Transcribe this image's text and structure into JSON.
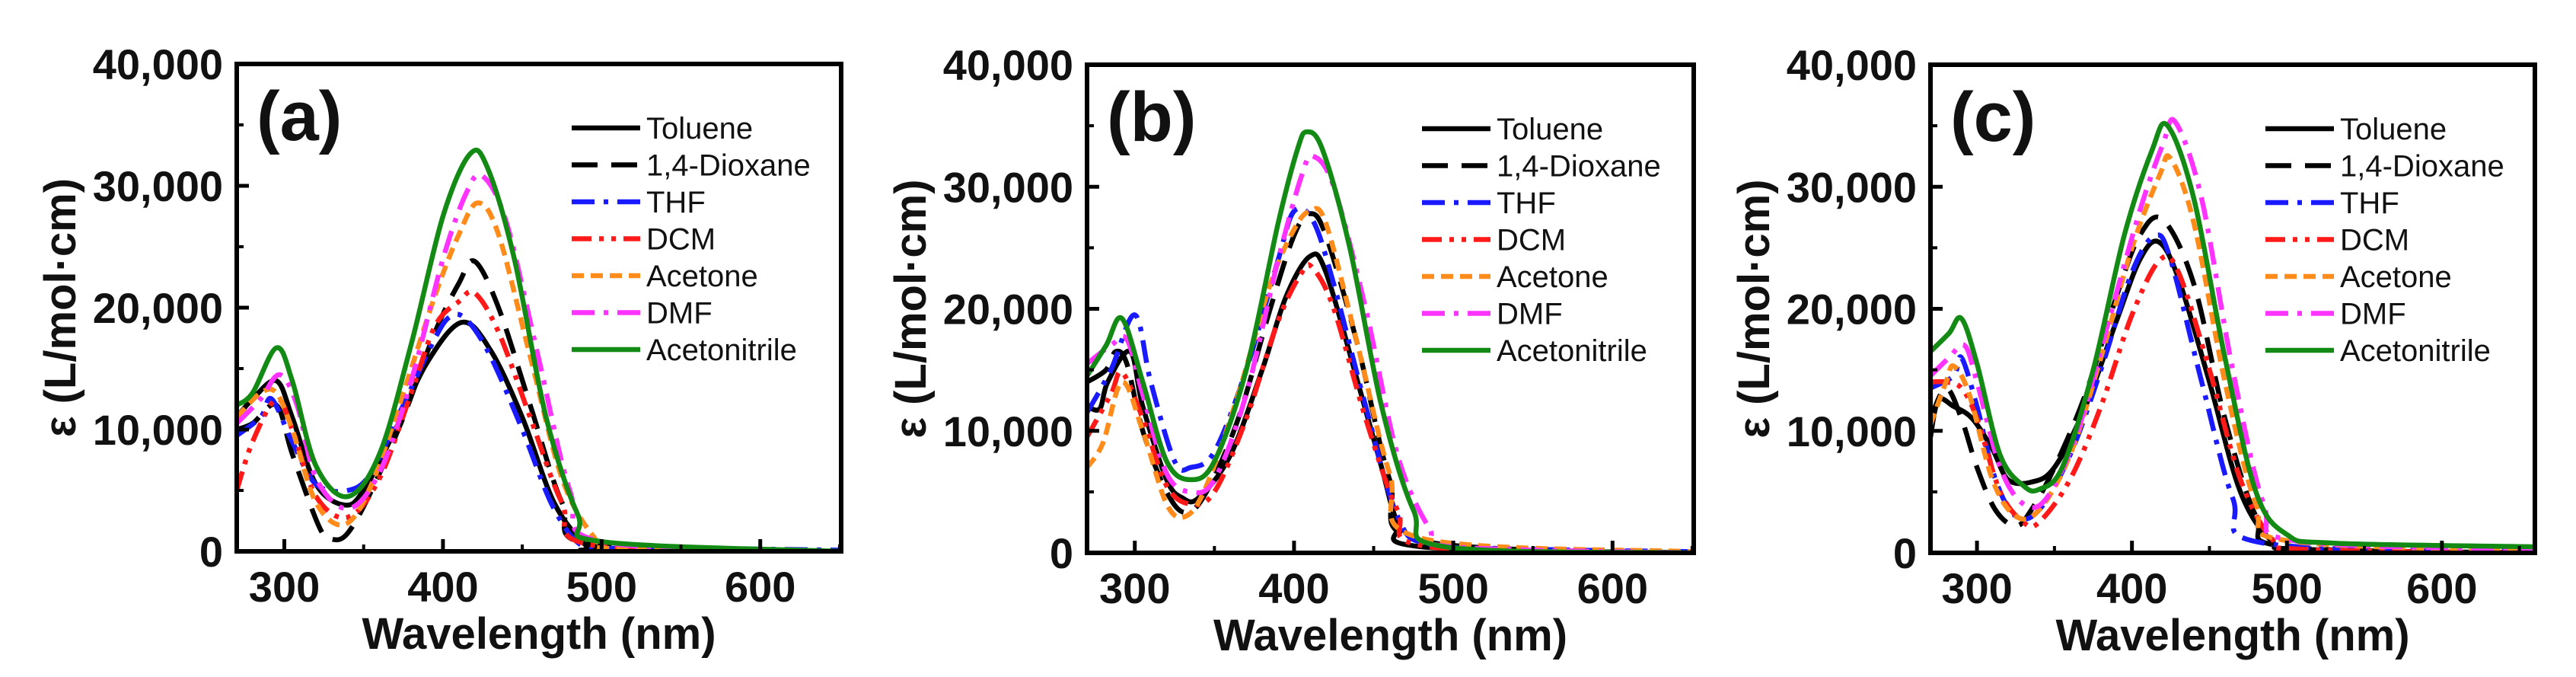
{
  "chart_data": [
    {
      "type": "line",
      "panel_label": "(a)",
      "xlabel": "Wavelength (nm)",
      "ylabel": "ε (L/mol·cm)",
      "xlim": [
        270,
        651
      ],
      "ylim": [
        0,
        40000
      ],
      "xticks": [
        300,
        400,
        500,
        600
      ],
      "xtick_labels": [
        "300",
        "400",
        "500",
        "600"
      ],
      "yticks": [
        0,
        10000,
        20000,
        30000,
        40000
      ],
      "ytick_labels": [
        "0",
        "10,000",
        "20,000",
        "30,000",
        "40,000"
      ],
      "legend_position": "top-right",
      "series": [
        {
          "name": "Toluene",
          "color": "#000000",
          "style": "solid",
          "x": [
            270,
            280,
            295,
            305,
            320,
            338,
            350,
            370,
            390,
            412,
            430,
            450,
            470,
            490,
            500,
            650
          ],
          "y": [
            11000,
            12500,
            14000,
            11000,
            5500,
            3800,
            5000,
            10000,
            15500,
            18800,
            16500,
            11000,
            4000,
            500,
            100,
            0
          ]
        },
        {
          "name": "1,4-Dioxane",
          "color": "#000000",
          "style": "dash",
          "x": [
            270,
            280,
            295,
            305,
            322,
            330,
            340,
            355,
            375,
            395,
            410,
            420,
            435,
            455,
            475,
            495,
            650
          ],
          "y": [
            10000,
            10500,
            12000,
            8000,
            2000,
            1000,
            1500,
            5000,
            11000,
            18000,
            22000,
            23800,
            20000,
            12000,
            4000,
            500,
            0
          ]
        },
        {
          "name": "THF",
          "color": "#1a1aff",
          "style": "dashdot",
          "x": [
            270,
            285,
            292,
            305,
            320,
            340,
            355,
            375,
            395,
            405,
            415,
            430,
            450,
            470,
            490,
            520,
            650
          ],
          "y": [
            9500,
            11000,
            12500,
            9000,
            5500,
            5000,
            6500,
            12000,
            17500,
            19300,
            19000,
            16000,
            10000,
            3500,
            300,
            300,
            100
          ]
        },
        {
          "name": "DCM",
          "color": "#ff1a1a",
          "style": "dashdotdot",
          "x": [
            270,
            280,
            295,
            305,
            320,
            340,
            360,
            380,
            395,
            410,
            420,
            435,
            455,
            475,
            495,
            650
          ],
          "y": [
            5000,
            9000,
            12500,
            10000,
            4500,
            2800,
            6000,
            13000,
            18500,
            20500,
            21200,
            18000,
            11000,
            4000,
            500,
            0
          ]
        },
        {
          "name": "Acetone",
          "color": "#ff8c1a",
          "style": "shortdash",
          "x": [
            270,
            285,
            295,
            305,
            320,
            338,
            355,
            375,
            395,
            410,
            422,
            435,
            455,
            475,
            495,
            510,
            650
          ],
          "y": [
            11000,
            13000,
            13000,
            10000,
            4000,
            2200,
            5500,
            13000,
            21000,
            26000,
            28600,
            26000,
            16000,
            6000,
            1200,
            200,
            0
          ]
        },
        {
          "name": "DMF",
          "color": "#ff33ff",
          "style": "dashdot",
          "x": [
            270,
            285,
            297,
            308,
            320,
            340,
            360,
            380,
            400,
            415,
            425,
            440,
            460,
            480,
            500,
            650
          ],
          "y": [
            10500,
            12500,
            14500,
            12000,
            6000,
            3500,
            6500,
            14000,
            24000,
            29500,
            30800,
            27000,
            16000,
            5000,
            800,
            0
          ]
        },
        {
          "name": "Acetonitrile",
          "color": "#138a13",
          "style": "solid",
          "x": [
            270,
            280,
            295,
            305,
            320,
            340,
            360,
            380,
            400,
            417,
            428,
            445,
            465,
            485,
            500,
            650
          ],
          "y": [
            12000,
            13000,
            16700,
            14000,
            7000,
            4500,
            8000,
            17000,
            27500,
            32600,
            31500,
            24000,
            11000,
            3000,
            800,
            0
          ]
        }
      ]
    },
    {
      "type": "line",
      "panel_label": "(b)",
      "xlabel": "Wavelength (nm)",
      "ylabel": "ε (L/mol·cm)",
      "xlim": [
        270,
        651
      ],
      "ylim": [
        0,
        40000
      ],
      "xticks": [
        300,
        400,
        500,
        600
      ],
      "xtick_labels": [
        "300",
        "400",
        "500",
        "600"
      ],
      "yticks": [
        0,
        10000,
        20000,
        30000,
        40000
      ],
      "ytick_labels": [
        "0",
        "10,000",
        "20,000",
        "30,000",
        "40,000"
      ],
      "legend_position": "top-right",
      "series": [
        {
          "name": "Toluene",
          "color": "#000000",
          "style": "solid",
          "x": [
            270,
            278,
            283,
            297,
            305,
            320,
            330,
            340,
            360,
            380,
            395,
            410,
            420,
            440,
            455,
            465,
            480,
            650
          ],
          "y": [
            12000,
            11800,
            14000,
            16500,
            12000,
            6000,
            4500,
            4500,
            8000,
            15000,
            21000,
            24300,
            23000,
            14000,
            7000,
            2500,
            500,
            0
          ]
        },
        {
          "name": "1,4-Dioxane",
          "color": "#000000",
          "style": "dash",
          "x": [
            270,
            282,
            288,
            295,
            305,
            320,
            332,
            345,
            365,
            385,
            400,
            410,
            420,
            440,
            460,
            480,
            650
          ],
          "y": [
            14000,
            15000,
            16500,
            15500,
            10000,
            5000,
            3300,
            5000,
            11000,
            20000,
            26000,
            27800,
            26000,
            17000,
            6000,
            1000,
            0
          ]
        },
        {
          "name": "THF",
          "color": "#1a1aff",
          "style": "dashdot",
          "x": [
            270,
            285,
            300,
            310,
            325,
            335,
            350,
            370,
            390,
            400,
            412,
            425,
            445,
            465,
            485,
            550,
            650
          ],
          "y": [
            11500,
            15000,
            19500,
            14000,
            7500,
            7000,
            8300,
            15000,
            24000,
            28000,
            27200,
            22000,
            12000,
            3000,
            700,
            300,
            100
          ]
        },
        {
          "name": "DCM",
          "color": "#ff1a1a",
          "style": "dashdotdot",
          "x": [
            270,
            285,
            292,
            305,
            320,
            335,
            350,
            370,
            390,
            405,
            412,
            425,
            445,
            465,
            485,
            650
          ],
          "y": [
            9500,
            13000,
            14800,
            11000,
            5500,
            4000,
            5000,
            11000,
            19000,
            23000,
            23300,
            20000,
            11000,
            3500,
            500,
            0
          ]
        },
        {
          "name": "Acetone",
          "color": "#ff8c1a",
          "style": "shortdash",
          "x": [
            270,
            280,
            292,
            305,
            320,
            332,
            345,
            365,
            385,
            400,
            410,
            420,
            440,
            460,
            480,
            650
          ],
          "y": [
            7000,
            9000,
            14000,
            10000,
            4000,
            3000,
            5500,
            13000,
            22000,
            26500,
            28000,
            27000,
            17000,
            6500,
            1200,
            100
          ]
        },
        {
          "name": "DMF",
          "color": "#ff33ff",
          "style": "dashdot",
          "x": [
            270,
            285,
            295,
            305,
            320,
            335,
            350,
            370,
            390,
            405,
            412,
            425,
            445,
            465,
            485,
            500,
            650
          ],
          "y": [
            15500,
            17000,
            17500,
            13000,
            6500,
            5000,
            6000,
            13000,
            24000,
            31000,
            32500,
            30000,
            20000,
            8000,
            2000,
            500,
            0
          ]
        },
        {
          "name": "Acetonitrile",
          "color": "#138a13",
          "style": "solid",
          "x": [
            270,
            282,
            292,
            305,
            320,
            335,
            350,
            370,
            390,
            402,
            408,
            418,
            435,
            455,
            475,
            495,
            650
          ],
          "y": [
            14500,
            17000,
            19200,
            14000,
            7500,
            6000,
            7500,
            15000,
            27000,
            33000,
            34500,
            33000,
            25000,
            12000,
            3500,
            500,
            0
          ]
        }
      ]
    },
    {
      "type": "line",
      "panel_label": "(c)",
      "xlabel": "Wavelength (nm)",
      "ylabel": "ε (L/mol·cm)",
      "xlim": [
        270,
        660
      ],
      "ylim": [
        0,
        40000
      ],
      "xticks": [
        300,
        400,
        500,
        600
      ],
      "xtick_labels": [
        "300",
        "400",
        "500",
        "600"
      ],
      "yticks": [
        0,
        10000,
        20000,
        30000,
        40000
      ],
      "ytick_labels": [
        "0",
        "10,000",
        "20,000",
        "30,000",
        "40,000"
      ],
      "legend_position": "top-right",
      "series": [
        {
          "name": "Toluene",
          "color": "#000000",
          "style": "solid",
          "x": [
            270,
            275,
            285,
            297,
            310,
            320,
            335,
            350,
            370,
            390,
            405,
            417,
            430,
            450,
            470,
            490,
            510,
            660
          ],
          "y": [
            9500,
            12500,
            12000,
            11000,
            8500,
            6000,
            5800,
            7000,
            12000,
            19000,
            24000,
            25500,
            22500,
            14000,
            5000,
            1000,
            300,
            0
          ]
        },
        {
          "name": "1,4-Dioxane",
          "color": "#000000",
          "style": "dash",
          "x": [
            270,
            280,
            290,
            300,
            312,
            325,
            335,
            350,
            370,
            390,
            405,
            420,
            440,
            460,
            480,
            500,
            660
          ],
          "y": [
            11000,
            13500,
            11000,
            7000,
            3500,
            2200,
            3500,
            7000,
            13000,
            21000,
            26000,
            27300,
            22000,
            11000,
            3000,
            500,
            0
          ]
        },
        {
          "name": "THF",
          "color": "#1a1aff",
          "style": "dashdot",
          "x": [
            270,
            285,
            290,
            300,
            312,
            325,
            340,
            360,
            380,
            400,
            415,
            425,
            445,
            465,
            485,
            660
          ],
          "y": [
            13500,
            14500,
            16000,
            12000,
            6000,
            3000,
            3500,
            8000,
            15000,
            23000,
            26000,
            24000,
            14000,
            4500,
            800,
            100
          ]
        },
        {
          "name": "DCM",
          "color": "#ff1a1a",
          "style": "dashdotdot",
          "x": [
            270,
            280,
            290,
            300,
            315,
            330,
            340,
            360,
            380,
            400,
            418,
            430,
            450,
            470,
            490,
            510,
            660
          ],
          "y": [
            14000,
            14000,
            13500,
            11000,
            5000,
            2500,
            2500,
            6000,
            12000,
            19500,
            24000,
            23000,
            15000,
            6000,
            1200,
            300,
            0
          ]
        },
        {
          "name": "Acetone",
          "color": "#ff8c1a",
          "style": "shortdash",
          "x": [
            270,
            280,
            285,
            295,
            310,
            325,
            340,
            360,
            380,
            400,
            418,
            425,
            440,
            460,
            480,
            500,
            660
          ],
          "y": [
            10500,
            14000,
            15300,
            13000,
            6000,
            3000,
            3500,
            8000,
            16000,
            25000,
            31000,
            32300,
            27000,
            14000,
            4000,
            1000,
            200
          ]
        },
        {
          "name": "DMF",
          "color": "#ff33ff",
          "style": "dashdot",
          "x": [
            270,
            282,
            292,
            300,
            315,
            330,
            345,
            365,
            385,
            405,
            420,
            428,
            445,
            465,
            485,
            505,
            660
          ],
          "y": [
            14500,
            16000,
            17000,
            14000,
            7000,
            4000,
            4500,
            10000,
            19000,
            28000,
            33500,
            35300,
            29000,
            15000,
            4000,
            1000,
            300
          ]
        },
        {
          "name": "Acetonitrile",
          "color": "#138a13",
          "style": "solid",
          "x": [
            270,
            282,
            290,
            300,
            315,
            330,
            340,
            355,
            375,
            395,
            413,
            423,
            440,
            460,
            480,
            500,
            530,
            660
          ],
          "y": [
            16500,
            18000,
            19200,
            15500,
            8000,
            5500,
            5200,
            7000,
            15000,
            26000,
            33000,
            35000,
            29000,
            16000,
            5000,
            1500,
            800,
            500
          ]
        }
      ]
    }
  ]
}
